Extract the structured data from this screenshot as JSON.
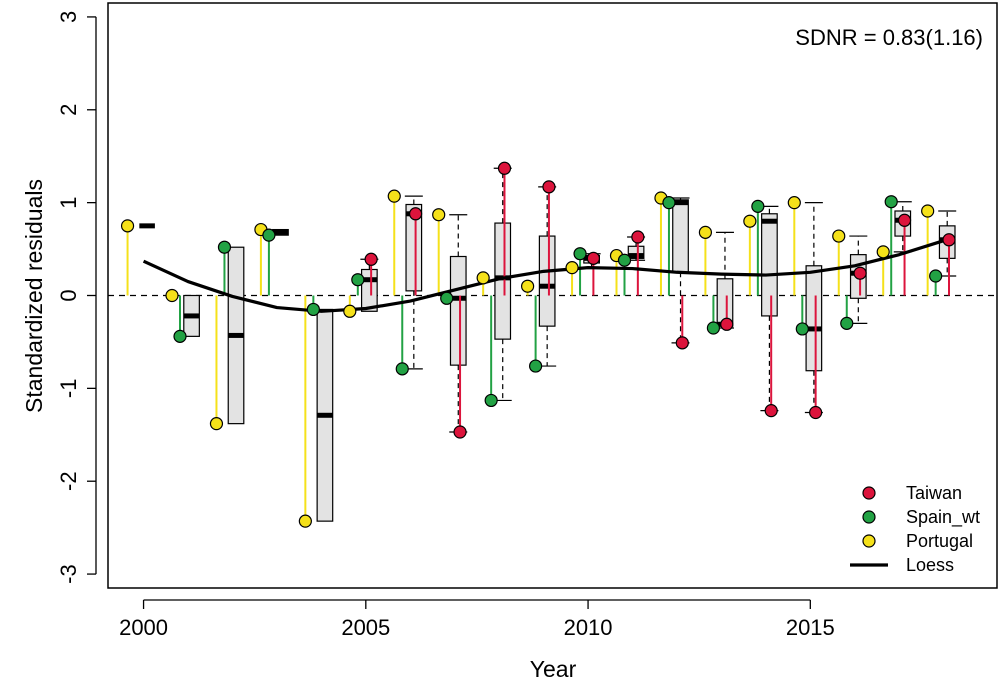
{
  "chart_data": {
    "type": "residual-boxplot",
    "annotation": "SDNR = 0.83(1.16)",
    "xlabel": "Year",
    "ylabel": "Standardized residuals",
    "xlim": [
      1999.2,
      2019.2
    ],
    "ylim": [
      -3.15,
      3.15
    ],
    "x_ticks": [
      2000,
      2005,
      2010,
      2015
    ],
    "y_ticks": [
      -3,
      -2,
      -1,
      0,
      1,
      2,
      3
    ],
    "y_tick_labels": [
      "-3",
      "-2",
      "-1",
      "0",
      "1",
      "2",
      "3"
    ],
    "grid": false,
    "zero_line": "dashed",
    "legend": {
      "position": "bottom-right",
      "items": [
        "Taiwan",
        "Spain_wt",
        "Portugal",
        "Loess"
      ]
    },
    "series": [
      {
        "name": "Portugal",
        "color": "#f5e11a",
        "points": [
          {
            "x": 2000,
            "y": 0.75
          },
          {
            "x": 2001,
            "y": 0.0
          },
          {
            "x": 2002,
            "y": -1.38
          },
          {
            "x": 2003,
            "y": 0.71
          },
          {
            "x": 2004,
            "y": -2.43
          },
          {
            "x": 2005,
            "y": -0.17
          },
          {
            "x": 2006,
            "y": 1.07
          },
          {
            "x": 2007,
            "y": 0.87
          },
          {
            "x": 2008,
            "y": 0.19
          },
          {
            "x": 2009,
            "y": 0.1
          },
          {
            "x": 2010,
            "y": 0.3
          },
          {
            "x": 2011,
            "y": 0.43
          },
          {
            "x": 2012,
            "y": 1.05
          },
          {
            "x": 2013,
            "y": 0.68
          },
          {
            "x": 2014,
            "y": 0.8
          },
          {
            "x": 2015,
            "y": 1.0
          },
          {
            "x": 2016,
            "y": 0.64
          },
          {
            "x": 2017,
            "y": 0.47
          },
          {
            "x": 2018,
            "y": 0.91
          }
        ]
      },
      {
        "name": "Spain_wt",
        "color": "#22a244",
        "points": [
          {
            "x": 2001,
            "y": -0.44
          },
          {
            "x": 2002,
            "y": 0.52
          },
          {
            "x": 2003,
            "y": 0.65
          },
          {
            "x": 2004,
            "y": -0.15
          },
          {
            "x": 2005,
            "y": 0.17
          },
          {
            "x": 2006,
            "y": -0.79
          },
          {
            "x": 2007,
            "y": -0.03
          },
          {
            "x": 2008,
            "y": -1.13
          },
          {
            "x": 2009,
            "y": -0.76
          },
          {
            "x": 2010,
            "y": 0.45
          },
          {
            "x": 2011,
            "y": 0.38
          },
          {
            "x": 2012,
            "y": 1.0
          },
          {
            "x": 2013,
            "y": -0.35
          },
          {
            "x": 2014,
            "y": 0.96
          },
          {
            "x": 2015,
            "y": -0.36
          },
          {
            "x": 2016,
            "y": -0.3
          },
          {
            "x": 2017,
            "y": 1.01
          },
          {
            "x": 2018,
            "y": 0.21
          }
        ]
      },
      {
        "name": "Taiwan",
        "color": "#dc143c",
        "points": [
          {
            "x": 2005,
            "y": 0.39
          },
          {
            "x": 2006,
            "y": 0.88
          },
          {
            "x": 2007,
            "y": -1.47
          },
          {
            "x": 2008,
            "y": 1.37
          },
          {
            "x": 2009,
            "y": 1.17
          },
          {
            "x": 2010,
            "y": 0.4
          },
          {
            "x": 2011,
            "y": 0.63
          },
          {
            "x": 2012,
            "y": -0.51
          },
          {
            "x": 2013,
            "y": -0.31
          },
          {
            "x": 2014,
            "y": -1.24
          },
          {
            "x": 2015,
            "y": -1.26
          },
          {
            "x": 2016,
            "y": 0.24
          },
          {
            "x": 2017,
            "y": 0.81
          },
          {
            "x": 2018,
            "y": 0.6
          }
        ]
      }
    ],
    "boxes": [
      {
        "x": 2000,
        "q1": 0.75,
        "median": 0.75,
        "q3": 0.75,
        "lo": 0.75,
        "hi": 0.75
      },
      {
        "x": 2001,
        "q1": -0.44,
        "median": -0.22,
        "q3": 0.0,
        "lo": -0.44,
        "hi": 0.0
      },
      {
        "x": 2002,
        "q1": -1.38,
        "median": -0.43,
        "q3": 0.52,
        "lo": -1.38,
        "hi": 0.52
      },
      {
        "x": 2003,
        "q1": 0.65,
        "median": 0.68,
        "q3": 0.71,
        "lo": 0.65,
        "hi": 0.71
      },
      {
        "x": 2004,
        "q1": -2.43,
        "median": -1.29,
        "q3": -0.15,
        "lo": -2.43,
        "hi": -0.15
      },
      {
        "x": 2005,
        "q1": -0.17,
        "median": 0.17,
        "q3": 0.28,
        "lo": -0.17,
        "hi": 0.39
      },
      {
        "x": 2006,
        "q1": 0.05,
        "median": 0.88,
        "q3": 0.98,
        "lo": -0.79,
        "hi": 1.07
      },
      {
        "x": 2007,
        "q1": -0.75,
        "median": -0.03,
        "q3": 0.42,
        "lo": -1.47,
        "hi": 0.87
      },
      {
        "x": 2008,
        "q1": -0.47,
        "median": 0.19,
        "q3": 0.78,
        "lo": -1.13,
        "hi": 1.37
      },
      {
        "x": 2009,
        "q1": -0.33,
        "median": 0.1,
        "q3": 0.64,
        "lo": -0.76,
        "hi": 1.17
      },
      {
        "x": 2010,
        "q1": 0.35,
        "median": 0.4,
        "q3": 0.43,
        "lo": 0.3,
        "hi": 0.45
      },
      {
        "x": 2011,
        "q1": 0.4,
        "median": 0.43,
        "q3": 0.53,
        "lo": 0.38,
        "hi": 0.63
      },
      {
        "x": 2012,
        "q1": 0.25,
        "median": 1.0,
        "q3": 1.03,
        "lo": -0.51,
        "hi": 1.05
      },
      {
        "x": 2013,
        "q1": -0.33,
        "median": -0.31,
        "q3": 0.18,
        "lo": -0.35,
        "hi": 0.68
      },
      {
        "x": 2014,
        "q1": -0.22,
        "median": 0.8,
        "q3": 0.88,
        "lo": -1.24,
        "hi": 0.96
      },
      {
        "x": 2015,
        "q1": -0.81,
        "median": -0.36,
        "q3": 0.32,
        "lo": -1.26,
        "hi": 1.0
      },
      {
        "x": 2016,
        "q1": -0.03,
        "median": 0.24,
        "q3": 0.44,
        "lo": -0.3,
        "hi": 0.64
      },
      {
        "x": 2017,
        "q1": 0.64,
        "median": 0.81,
        "q3": 0.91,
        "lo": 0.47,
        "hi": 1.01
      },
      {
        "x": 2018,
        "q1": 0.4,
        "median": 0.6,
        "q3": 0.75,
        "lo": 0.21,
        "hi": 0.91
      }
    ],
    "loess": {
      "x": [
        2000,
        2001,
        2002,
        2003,
        2004,
        2005,
        2006,
        2007,
        2008,
        2009,
        2010,
        2011,
        2012,
        2013,
        2014,
        2015,
        2016,
        2017,
        2018
      ],
      "y": [
        0.37,
        0.15,
        -0.01,
        -0.13,
        -0.17,
        -0.14,
        -0.06,
        0.06,
        0.18,
        0.26,
        0.3,
        0.29,
        0.25,
        0.23,
        0.22,
        0.25,
        0.32,
        0.44,
        0.59
      ]
    }
  }
}
